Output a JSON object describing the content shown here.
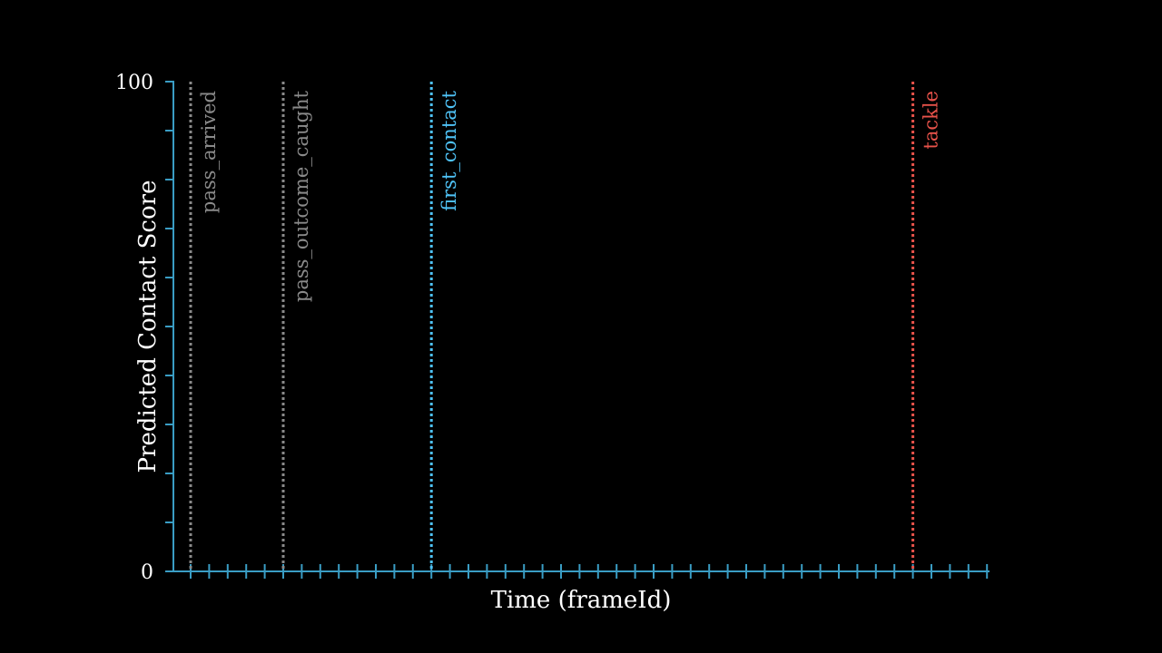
{
  "chart_data": {
    "type": "line",
    "title": "",
    "xlabel": "Time (frameId)",
    "ylabel": "Predicted Contact Score",
    "ylim": [
      0,
      100
    ],
    "yticks_labeled": [
      "0",
      "100"
    ],
    "y_minor_tick_step": 10,
    "xlim": [
      0,
      45
    ],
    "x_tick_step": 1,
    "grid": false,
    "colors": {
      "background": "#000000",
      "axis": "#3a9dc4",
      "text": "#ffffff",
      "neutral_event": "#8a8a8a",
      "contact_event": "#4fc3f7",
      "tackle_event": "#e8524a"
    },
    "events": [
      {
        "label": "pass_arrived",
        "frame": 1,
        "color": "#8a8a8a"
      },
      {
        "label": "pass_outcome_caught",
        "frame": 6,
        "color": "#8a8a8a"
      },
      {
        "label": "first_contact",
        "frame": 14,
        "color": "#4fc3f7"
      },
      {
        "label": "tackle",
        "frame": 40,
        "color": "#e8524a"
      }
    ],
    "series": []
  }
}
